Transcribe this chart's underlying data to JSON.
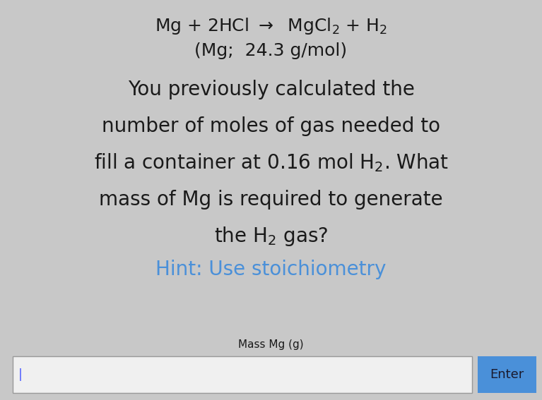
{
  "background_color": "#c8c8c8",
  "eq_line": "Mg + 2HCl $\\rightarrow$  MgCl$_2$ + H$_2$",
  "mol_line": "(Mg;  24.3 g/mol)",
  "body_line1": "You previously calculated the",
  "body_line2": "number of moles of gas needed to",
  "body_line3": "fill a container at 0.16 mol H$_2$. What",
  "body_line4": "mass of Mg is required to generate",
  "body_line5": "the H$_2$ gas?",
  "hint_text": "Hint: Use stoichiometry",
  "hint_color": "#4a90d9",
  "label_text": "Mass Mg (g)",
  "enter_text": "Enter",
  "enter_bg": "#4a90d9",
  "enter_text_color": "#1a1a2e",
  "input_box_color": "#f0f0f0",
  "input_box_border": "#999999",
  "eq_fontsize": 18,
  "body_fontsize": 20,
  "hint_fontsize": 20,
  "label_fontsize": 11,
  "enter_fontsize": 13,
  "cursor_color": "#4a5aff"
}
